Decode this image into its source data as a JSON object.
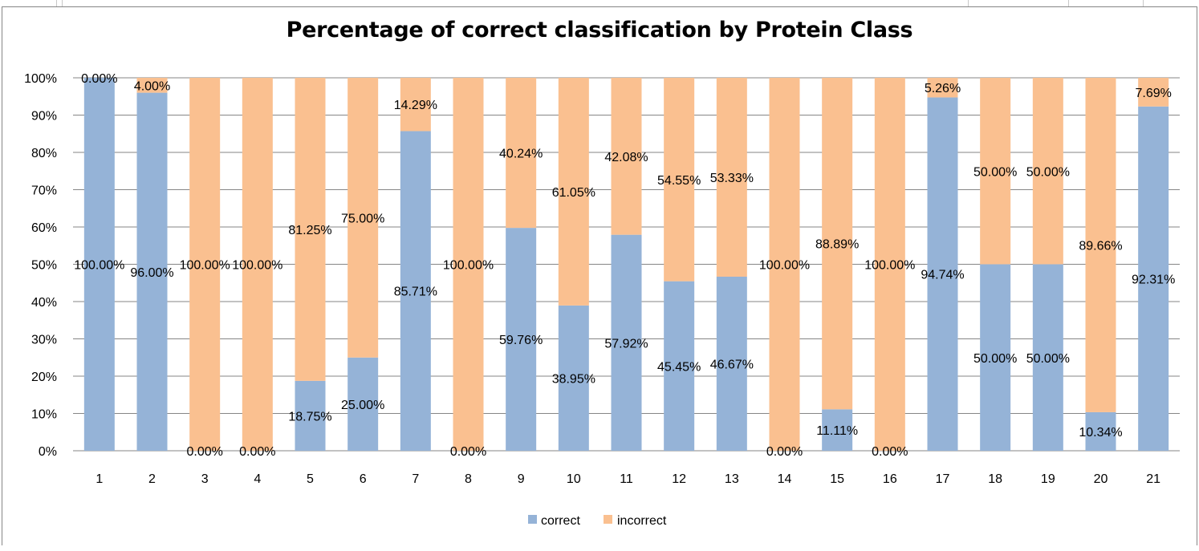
{
  "chart_data": {
    "type": "bar",
    "stacked": true,
    "title": "Percentage of correct classification by Protein Class",
    "categories": [
      "1",
      "2",
      "3",
      "4",
      "5",
      "6",
      "7",
      "8",
      "9",
      "10",
      "11",
      "12",
      "13",
      "14",
      "15",
      "16",
      "17",
      "18",
      "19",
      "20",
      "21"
    ],
    "series": [
      {
        "name": "correct",
        "color": "#95B3D7",
        "values": [
          100,
          96,
          0,
          0,
          18.75,
          25,
          85.71,
          0,
          59.76,
          38.95,
          57.92,
          45.45,
          46.67,
          0,
          11.11,
          0,
          94.74,
          50,
          50,
          10.34,
          92.31
        ],
        "labels": [
          "100.00%",
          "96.00%",
          "0.00%",
          "0.00%",
          "18.75%",
          "25.00%",
          "85.71%",
          "0.00%",
          "59.76%",
          "38.95%",
          "57.92%",
          "45.45%",
          "46.67%",
          "0.00%",
          "11.11%",
          "0.00%",
          "94.74%",
          "50.00%",
          "50.00%",
          "10.34%",
          "92.31%"
        ]
      },
      {
        "name": "incorrect",
        "color": "#FAC090",
        "values": [
          0,
          4,
          100,
          100,
          81.25,
          75,
          14.29,
          100,
          40.24,
          61.05,
          42.08,
          54.55,
          53.33,
          100,
          88.89,
          100,
          5.26,
          50,
          50,
          89.66,
          7.69
        ],
        "labels": [
          "0.00%",
          "4.00%",
          "100.00%",
          "100.00%",
          "81.25%",
          "75.00%",
          "14.29%",
          "100.00%",
          "40.24%",
          "61.05%",
          "42.08%",
          "54.55%",
          "53.33%",
          "100.00%",
          "88.89%",
          "100.00%",
          "5.26%",
          "50.00%",
          "50.00%",
          "89.66%",
          "7.69%"
        ]
      }
    ],
    "yticks": [
      "0%",
      "10%",
      "20%",
      "30%",
      "40%",
      "50%",
      "60%",
      "70%",
      "80%",
      "90%",
      "100%"
    ],
    "ylim": [
      0,
      100
    ],
    "grid": true,
    "legend": "bottom"
  }
}
